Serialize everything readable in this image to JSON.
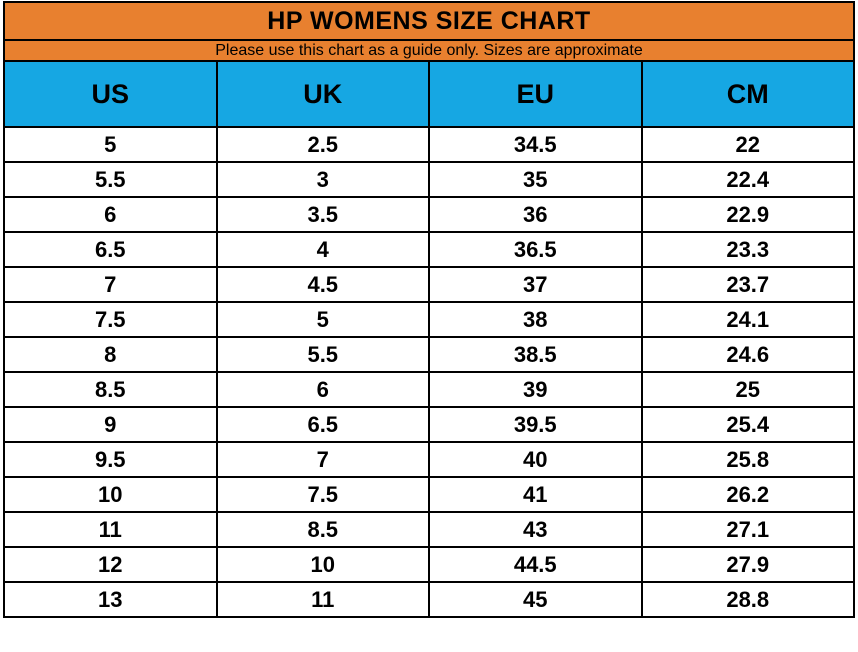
{
  "title": "HP WOMENS SIZE CHART",
  "subtitle": "Please use this chart as a guide only. Sizes are approximate",
  "colors": {
    "band_orange": "#E8802F",
    "header_blue": "#16A7E3",
    "grid_black": "#000000",
    "text_black": "#000000",
    "row_white": "#ffffff"
  },
  "chart_data": {
    "type": "table",
    "title": "HP WOMENS SIZE CHART",
    "subtitle": "Please use this chart as a guide only. Sizes are approximate",
    "columns": [
      "US",
      "UK",
      "EU",
      "CM"
    ],
    "rows": [
      [
        "5",
        "2.5",
        "34.5",
        "22"
      ],
      [
        "5.5",
        "3",
        "35",
        "22.4"
      ],
      [
        "6",
        "3.5",
        "36",
        "22.9"
      ],
      [
        "6.5",
        "4",
        "36.5",
        "23.3"
      ],
      [
        "7",
        "4.5",
        "37",
        "23.7"
      ],
      [
        "7.5",
        "5",
        "38",
        "24.1"
      ],
      [
        "8",
        "5.5",
        "38.5",
        "24.6"
      ],
      [
        "8.5",
        "6",
        "39",
        "25"
      ],
      [
        "9",
        "6.5",
        "39.5",
        "25.4"
      ],
      [
        "9.5",
        "7",
        "40",
        "25.8"
      ],
      [
        "10",
        "7.5",
        "41",
        "26.2"
      ],
      [
        "11",
        "8.5",
        "43",
        "27.1"
      ],
      [
        "12",
        "10",
        "44.5",
        "27.9"
      ],
      [
        "13",
        "11",
        "45",
        "28.8"
      ]
    ]
  }
}
